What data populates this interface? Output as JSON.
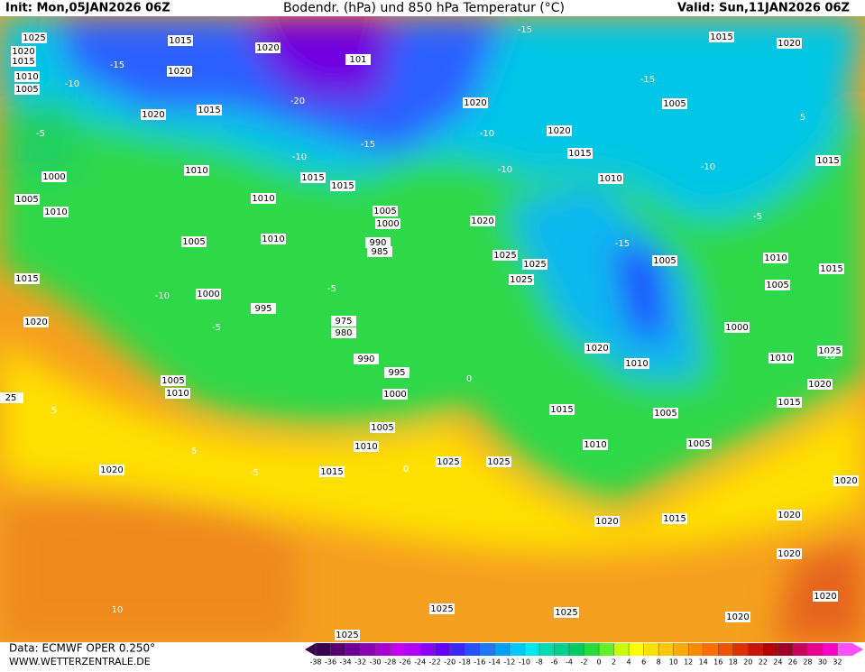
{
  "header": {
    "init": "Init: Mon,05JAN2026 06Z",
    "title": "Bodendr. (hPa) und 850 hPa Temperatur (°C)",
    "valid": "Valid: Sun,11JAN2026 06Z"
  },
  "footer": {
    "source": "Data: ECMWF OPER 0.250°",
    "site": "WWW.WETTERZENTRALE.DE"
  },
  "isobar_labels": [
    "1025",
    "1015",
    "1020",
    "1020",
    "1015",
    "101",
    "1010",
    "1005",
    "1020",
    "1020",
    "1015",
    "1020",
    "1015",
    "1020",
    "1005",
    "1020",
    "1015",
    "1010",
    "1015",
    "1010",
    "1000",
    "1015",
    "1015",
    "1005",
    "1010",
    "1010",
    "1005",
    "1000",
    "1020",
    "1005",
    "1010",
    "990",
    "985",
    "1025",
    "1025",
    "1025",
    "1005",
    "1010",
    "1015",
    "1015",
    "1005",
    "1000",
    "995",
    "975",
    "980",
    "1020",
    "1000",
    "1020",
    "1010",
    "990",
    "995",
    "1025",
    "1010",
    "1005",
    "1010",
    "1000",
    "1020",
    "1015",
    "1015",
    "1005",
    "1005",
    "1010",
    "1010",
    "1005",
    "1020",
    "1015",
    "1025",
    "1025",
    "1020",
    "1015",
    "1020",
    "1020",
    "1020",
    "1020",
    "1025",
    "1025",
    "1020",
    "1025",
    "25"
  ],
  "isotherm_labels": [
    "-5",
    "-10",
    "-15",
    "-20",
    "-15",
    "-10",
    "-10",
    "-5",
    "-5",
    "5",
    "0",
    "-10",
    "-15",
    "-15",
    "-10",
    "-5",
    "5",
    "10",
    "-5",
    "0",
    "5",
    "10",
    "-10",
    "-15"
  ],
  "color_scale": {
    "ticks": [
      -38,
      -36,
      -34,
      -32,
      -30,
      -28,
      -26,
      -24,
      -22,
      -20,
      -18,
      -16,
      -14,
      -12,
      -10,
      -8,
      -6,
      -4,
      -2,
      0,
      2,
      4,
      6,
      8,
      10,
      12,
      14,
      16,
      18,
      20,
      22,
      24,
      26,
      28,
      30,
      32
    ],
    "colors": [
      "#3c0050",
      "#55006e",
      "#6e0096",
      "#8c00b4",
      "#aa00d2",
      "#c800f0",
      "#b400ff",
      "#8c00ff",
      "#6400ff",
      "#3c28ff",
      "#2850ff",
      "#1e78ff",
      "#00a0ff",
      "#00c8ff",
      "#00e6f0",
      "#00dcb4",
      "#00d28c",
      "#00c864",
      "#28dc3c",
      "#64f028",
      "#c8ff00",
      "#ffff00",
      "#ffe100",
      "#ffc800",
      "#ffaa00",
      "#ff8c00",
      "#ff6e00",
      "#f05000",
      "#dc3200",
      "#c81400",
      "#b40000",
      "#a00028",
      "#c8005a",
      "#e6008c",
      "#ff00c8",
      "#ff50ff"
    ]
  }
}
